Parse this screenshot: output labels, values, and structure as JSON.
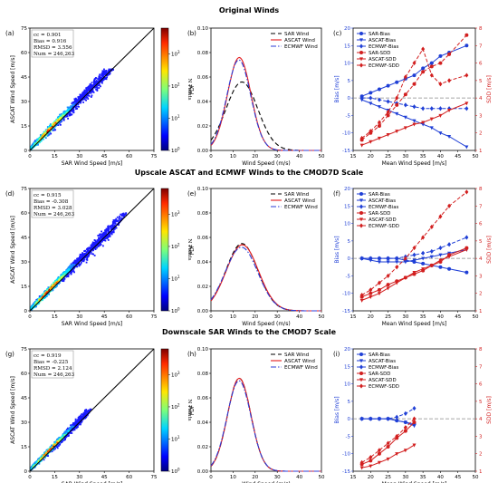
{
  "rows": [
    {
      "title": "Original Winds"
    },
    {
      "title": "Upscale ASCAT and ECMWF Winds to the CMOD7D Scale"
    },
    {
      "title": "Downscale SAR Winds to the CMOD7 Scale"
    }
  ],
  "chart_data": [
    {
      "id": "a",
      "panel_label": "(a)",
      "type": "heatmap",
      "xlabel": "SAR Wind Speed [m/s]",
      "ylabel": "ASCAT Wind Speed [m/s]",
      "xticks": [
        "0",
        "15",
        "30",
        "45",
        "60",
        "75"
      ],
      "yticks": [
        "0",
        "15",
        "30",
        "45",
        "60",
        "75"
      ],
      "xlim": [
        0,
        75
      ],
      "ylim": [
        0,
        75
      ],
      "stats": [
        "cc = 0.901",
        "Bias = 0.916",
        "RMSD = 3.556",
        "Num = 246,263"
      ],
      "colorbar_label": "N Points",
      "colorbar_ticks": [
        "10^0",
        "10^1",
        "10^2",
        "10^3"
      ],
      "extent": {
        "x_max": 55,
        "y_max": 50,
        "spread": 7
      }
    },
    {
      "id": "b",
      "panel_label": "(b)",
      "type": "line",
      "xlabel": "Wind Speed (m/s)",
      "ylabel": "PDF",
      "xlim": [
        0,
        50
      ],
      "ylim": [
        0,
        0.1
      ],
      "xticks": [
        "0",
        "10",
        "20",
        "30",
        "40",
        "50"
      ],
      "yticks": [
        "0.00",
        "0.02",
        "0.04",
        "0.06",
        "0.08",
        "0.10"
      ],
      "series": [
        {
          "name": "SAR Wind",
          "color": "#000000",
          "dash": "5,3",
          "mean": 14.0,
          "sd": 7.2,
          "peak": 0.056
        },
        {
          "name": "ASCAT Wind",
          "color": "#e41a1c",
          "dash": "",
          "mean": 12.8,
          "sd": 5.3,
          "peak": 0.076
        },
        {
          "name": "ECMWF Wind",
          "color": "#2b3bd6",
          "dash": "6,2,1.5,2",
          "mean": 12.6,
          "sd": 5.4,
          "peak": 0.074
        }
      ]
    },
    {
      "id": "c",
      "panel_label": "(c)",
      "type": "line",
      "xlabel": "Mean Wind Speed [m/s]",
      "ylabel": "Bias [m/s]",
      "ylabel_right": "SDD [m/s]",
      "xlim": [
        15,
        50
      ],
      "ylim": [
        -15,
        20
      ],
      "ylim_right": [
        1,
        8
      ],
      "xticks": [
        "15",
        "20",
        "25",
        "30",
        "35",
        "40",
        "45",
        "50"
      ],
      "yticks": [
        "-15",
        "-10",
        "-5",
        "0",
        "5",
        "10",
        "15",
        "20"
      ],
      "yticks_right": [
        "1",
        "2",
        "3",
        "4",
        "5",
        "6",
        "7",
        "8"
      ],
      "x": [
        17.5,
        20,
        22.5,
        25,
        27.5,
        30,
        32.5,
        35,
        37.5,
        40,
        42.5,
        47.5
      ],
      "series": [
        {
          "name": "SAR-Bias",
          "axis": "left",
          "color": "#1f3fd6",
          "marker": "circle",
          "dash": "",
          "values": [
            0.5,
            1.5,
            2.5,
            3.5,
            4.5,
            5.5,
            6.5,
            8.5,
            10,
            12,
            13,
            15
          ]
        },
        {
          "name": "ASCAT-Bias",
          "axis": "left",
          "color": "#1f3fd6",
          "marker": "triangle",
          "dash": "",
          "values": [
            -0.5,
            -1.5,
            -2.5,
            -3.5,
            -4.5,
            -5.5,
            -6.5,
            -7.5,
            -8.5,
            -10,
            -11,
            -14
          ]
        },
        {
          "name": "ECMWF-Bias",
          "axis": "left",
          "color": "#1f3fd6",
          "marker": "diamond",
          "dash": "4,2",
          "values": [
            0,
            0,
            -0.5,
            -1,
            -1.5,
            -2,
            -2.5,
            -3,
            -3,
            -3,
            -3,
            -3
          ]
        },
        {
          "name": "SAR-SDD",
          "axis": "right",
          "color": "#d21f1f",
          "marker": "circle",
          "dash": "4,2",
          "values": [
            1.6,
            2.0,
            2.4,
            3.0,
            3.6,
            4.2,
            4.8,
            5.5,
            5.8,
            6.0,
            6.5,
            7.6
          ]
        },
        {
          "name": "ASCAT-SDD",
          "axis": "right",
          "color": "#d21f1f",
          "marker": "triangle",
          "dash": "",
          "values": [
            1.3,
            1.5,
            1.7,
            1.9,
            2.1,
            2.3,
            2.5,
            2.6,
            2.8,
            3.0,
            3.3,
            3.7
          ]
        },
        {
          "name": "ECMWF-SDD",
          "axis": "right",
          "color": "#d21f1f",
          "marker": "diamond",
          "dash": "4,2",
          "values": [
            1.7,
            2.1,
            2.6,
            3.2,
            4.0,
            5.2,
            6.0,
            6.8,
            5.3,
            4.8,
            5.0,
            5.3
          ]
        }
      ]
    },
    {
      "id": "d",
      "panel_label": "(d)",
      "type": "heatmap",
      "xlabel": "SAR Wind Speed [m/s]",
      "ylabel": "ASCAT Wind Speed [m/s]",
      "xticks": [
        "0",
        "15",
        "30",
        "45",
        "60",
        "75"
      ],
      "yticks": [
        "0",
        "15",
        "30",
        "45",
        "60",
        "75"
      ],
      "xlim": [
        0,
        75
      ],
      "ylim": [
        0,
        75
      ],
      "stats": [
        "cc = 0.915",
        "Bias = -0.308",
        "RMSD = 3.028",
        "Num = 246,263"
      ],
      "colorbar_label": "N Points",
      "colorbar_ticks": [
        "10^0",
        "10^1",
        "10^2",
        "10^3"
      ],
      "extent": {
        "x_max": 58,
        "y_max": 60,
        "spread": 7
      }
    },
    {
      "id": "e",
      "panel_label": "(e)",
      "type": "line",
      "xlabel": "Wind Speed (m/s)",
      "ylabel": "PDF",
      "xlim": [
        0,
        50
      ],
      "ylim": [
        0,
        0.1
      ],
      "xticks": [
        "0",
        "10",
        "20",
        "30",
        "40",
        "50"
      ],
      "yticks": [
        "0.00",
        "0.02",
        "0.04",
        "0.06",
        "0.08",
        "0.10"
      ],
      "series": [
        {
          "name": "SAR Wind",
          "color": "#000000",
          "dash": "5,3",
          "mean": 14.0,
          "sd": 7.2,
          "peak": 0.055
        },
        {
          "name": "ASCAT Wind",
          "color": "#e41a1c",
          "dash": "",
          "mean": 14.2,
          "sd": 7.3,
          "peak": 0.054
        },
        {
          "name": "ECMWF Wind",
          "color": "#2b3bd6",
          "dash": "6,2,1.5,2",
          "mean": 13.8,
          "sd": 7.4,
          "peak": 0.052
        }
      ]
    },
    {
      "id": "f",
      "panel_label": "(f)",
      "type": "line",
      "xlabel": "Mean Wind Speed [m/s]",
      "ylabel": "Bias [m/s]",
      "ylabel_right": "SDD [m/s]",
      "xlim": [
        15,
        50
      ],
      "ylim": [
        -15,
        20
      ],
      "ylim_right": [
        1,
        8
      ],
      "xticks": [
        "15",
        "20",
        "25",
        "30",
        "35",
        "40",
        "45",
        "50"
      ],
      "yticks": [
        "-15",
        "-10",
        "-5",
        "0",
        "5",
        "10",
        "15",
        "20"
      ],
      "yticks_right": [
        "1",
        "2",
        "3",
        "4",
        "5",
        "6",
        "7",
        "8"
      ],
      "x": [
        17.5,
        20,
        22.5,
        25,
        27.5,
        30,
        32.5,
        35,
        37.5,
        40,
        42.5,
        47.5
      ],
      "series": [
        {
          "name": "SAR-Bias",
          "axis": "left",
          "color": "#1f3fd6",
          "marker": "circle",
          "dash": "",
          "values": [
            0,
            0,
            0,
            0,
            0,
            -0.5,
            -1,
            -1.5,
            -2,
            -2.5,
            -3,
            -4
          ]
        },
        {
          "name": "ASCAT-Bias",
          "axis": "left",
          "color": "#1f3fd6",
          "marker": "triangle",
          "dash": "",
          "values": [
            0,
            -0.5,
            -1,
            -1,
            -1,
            -1,
            -0.5,
            0,
            0.5,
            1,
            1.5,
            2.5
          ]
        },
        {
          "name": "ECMWF-Bias",
          "axis": "left",
          "color": "#1f3fd6",
          "marker": "diamond",
          "dash": "4,2",
          "values": [
            0,
            0,
            0,
            0,
            0,
            0.5,
            1,
            1.5,
            2,
            3,
            4,
            6
          ]
        },
        {
          "name": "SAR-SDD",
          "axis": "right",
          "color": "#d21f1f",
          "marker": "circle",
          "dash": "",
          "values": [
            1.8,
            2.0,
            2.2,
            2.5,
            2.7,
            2.9,
            3.1,
            3.3,
            3.6,
            3.8,
            4.2,
            4.6
          ]
        },
        {
          "name": "ASCAT-SDD",
          "axis": "right",
          "color": "#d21f1f",
          "marker": "triangle",
          "dash": "",
          "values": [
            1.6,
            1.8,
            2.0,
            2.3,
            2.6,
            2.9,
            3.2,
            3.4,
            3.6,
            3.9,
            4.1,
            4.5
          ]
        },
        {
          "name": "ECMWF-SDD",
          "axis": "right",
          "color": "#d21f1f",
          "marker": "diamond",
          "dash": "4,2",
          "values": [
            1.9,
            2.2,
            2.6,
            3.0,
            3.5,
            4.0,
            4.6,
            5.2,
            5.8,
            6.4,
            7.0,
            7.8
          ]
        }
      ]
    },
    {
      "id": "g",
      "panel_label": "(g)",
      "type": "heatmap",
      "xlabel": "SAR Wind Speed [m/s]",
      "ylabel": "ASCAT Wind Speed [m/s]",
      "xticks": [
        "0",
        "15",
        "30",
        "45",
        "60",
        "75"
      ],
      "yticks": [
        "0",
        "15",
        "30",
        "45",
        "60",
        "75"
      ],
      "xlim": [
        0,
        75
      ],
      "ylim": [
        0,
        75
      ],
      "stats": [
        "cc = 0.919",
        "Bias = -0.225",
        "RMSD = 2.124",
        "Num = 246,263"
      ],
      "colorbar_label": "N Points",
      "colorbar_ticks": [
        "10^0",
        "10^1",
        "10^2",
        "10^3"
      ],
      "extent": {
        "x_max": 38,
        "y_max": 38,
        "spread": 5
      }
    },
    {
      "id": "h",
      "panel_label": "(h)",
      "type": "line",
      "xlabel": "Wind Speed (m/s)",
      "ylabel": "PDF",
      "xlim": [
        0,
        50
      ],
      "ylim": [
        0,
        0.1
      ],
      "xticks": [
        "0",
        "10",
        "20",
        "30",
        "40",
        "50"
      ],
      "yticks": [
        "0.00",
        "0.02",
        "0.04",
        "0.06",
        "0.08",
        "0.10"
      ],
      "series": [
        {
          "name": "SAR Wind",
          "color": "#000000",
          "dash": "5,3",
          "mean": 12.8,
          "sd": 5.3,
          "peak": 0.076
        },
        {
          "name": "ASCAT Wind",
          "color": "#e41a1c",
          "dash": "",
          "mean": 12.8,
          "sd": 5.3,
          "peak": 0.076
        },
        {
          "name": "ECMWF Wind",
          "color": "#2b3bd6",
          "dash": "6,2,1.5,2",
          "mean": 12.7,
          "sd": 5.4,
          "peak": 0.074
        }
      ]
    },
    {
      "id": "i",
      "panel_label": "(i)",
      "type": "line",
      "xlabel": "Mean Wind Speed [m/s]",
      "ylabel": "Bias [m/s]",
      "ylabel_right": "SDD [m/s]",
      "xlim": [
        15,
        50
      ],
      "ylim": [
        -15,
        20
      ],
      "ylim_right": [
        1,
        8
      ],
      "xticks": [
        "15",
        "20",
        "25",
        "30",
        "35",
        "40",
        "45",
        "50"
      ],
      "yticks": [
        "-15",
        "-10",
        "-5",
        "0",
        "5",
        "10",
        "15",
        "20"
      ],
      "yticks_right": [
        "1",
        "2",
        "3",
        "4",
        "5",
        "6",
        "7",
        "8"
      ],
      "x": [
        17.5,
        20,
        22.5,
        25,
        27.5,
        30,
        32.5
      ],
      "series": [
        {
          "name": "SAR-Bias",
          "axis": "left",
          "color": "#1f3fd6",
          "marker": "circle",
          "dash": "",
          "values": [
            0,
            0,
            0,
            0,
            -0.5,
            -1,
            -1.5
          ]
        },
        {
          "name": "ASCAT-Bias",
          "axis": "left",
          "color": "#1f3fd6",
          "marker": "triangle",
          "dash": "",
          "values": [
            0,
            0,
            0,
            0,
            -0.5,
            -1,
            -2
          ]
        },
        {
          "name": "ECMWF-Bias",
          "axis": "left",
          "color": "#1f3fd6",
          "marker": "diamond",
          "dash": "4,2",
          "values": [
            0,
            0,
            0,
            0,
            0.5,
            1.5,
            3
          ]
        },
        {
          "name": "SAR-SDD",
          "axis": "right",
          "color": "#d21f1f",
          "marker": "circle",
          "dash": "",
          "values": [
            1.4,
            1.6,
            2.0,
            2.4,
            2.9,
            3.3,
            3.8
          ]
        },
        {
          "name": "ASCAT-SDD",
          "axis": "right",
          "color": "#d21f1f",
          "marker": "triangle",
          "dash": "",
          "values": [
            1.2,
            1.3,
            1.5,
            1.7,
            2.0,
            2.2,
            2.5
          ]
        },
        {
          "name": "ECMWF-SDD",
          "axis": "right",
          "color": "#d21f1f",
          "marker": "diamond",
          "dash": "4,2",
          "values": [
            1.5,
            1.8,
            2.2,
            2.6,
            3.0,
            3.5,
            4.0
          ]
        }
      ]
    }
  ]
}
